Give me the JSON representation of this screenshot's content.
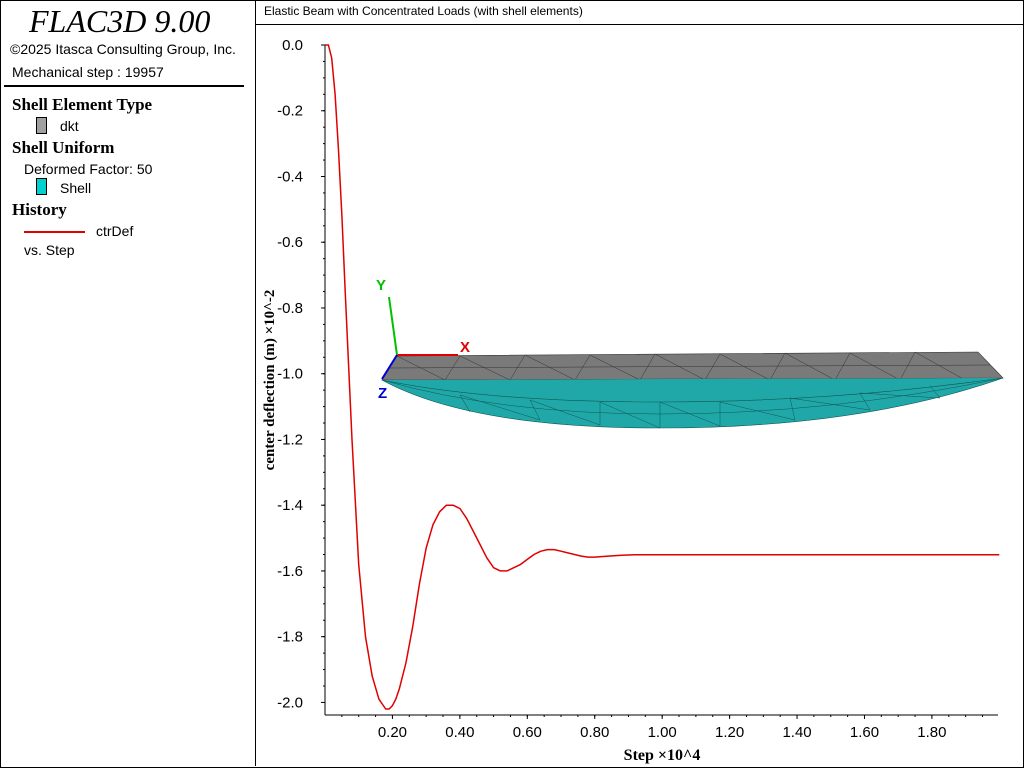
{
  "app": {
    "title": "FLAC3D 9.00",
    "copyright": "©2025 Itasca Consulting Group, Inc.",
    "mechanical_step": "Mechanical step : 19957"
  },
  "legend": {
    "shell_type_heading": "Shell Element Type",
    "shell_type_item": "dkt",
    "shell_type_color": "#a0a0a0",
    "shell_uniform_heading": "Shell Uniform",
    "deformed_factor": "Deformed Factor: 50",
    "shell_item": "Shell",
    "shell_color": "#00d0d0",
    "history_heading": "History",
    "history_item": "ctrDef",
    "history_color": "#e00000",
    "history_vs": "vs. Step"
  },
  "plot": {
    "title": "Elastic Beam with Concentrated Loads (with shell elements)"
  },
  "chart_data": {
    "type": "line",
    "xlabel": "Step ×10^4",
    "ylabel": "center deflection (m) ×10^-2",
    "xlim": [
      0,
      1.996
    ],
    "ylim": [
      -2.02,
      0.0
    ],
    "xticks": [
      "0.20",
      "0.40",
      "0.60",
      "0.80",
      "1.00",
      "1.20",
      "1.40",
      "1.60",
      "1.80"
    ],
    "yticks": [
      "0.0",
      "-0.2",
      "-0.4",
      "-0.6",
      "-0.8",
      "-1.0",
      "-1.2",
      "-1.4",
      "-1.6",
      "-1.8",
      "-2.0"
    ],
    "grid": false,
    "series": [
      {
        "name": "ctrDef",
        "color": "#e00000",
        "x": [
          0.0,
          0.01,
          0.02,
          0.03,
          0.04,
          0.05,
          0.06,
          0.08,
          0.1,
          0.12,
          0.14,
          0.16,
          0.18,
          0.19,
          0.2,
          0.21,
          0.22,
          0.24,
          0.26,
          0.28,
          0.3,
          0.32,
          0.34,
          0.36,
          0.38,
          0.4,
          0.42,
          0.44,
          0.46,
          0.48,
          0.5,
          0.52,
          0.54,
          0.56,
          0.58,
          0.6,
          0.62,
          0.64,
          0.66,
          0.68,
          0.7,
          0.72,
          0.74,
          0.76,
          0.78,
          0.8,
          0.84,
          0.88,
          0.92,
          0.96,
          1.0,
          1.04,
          1.08,
          1.12,
          1.16,
          1.2,
          1.3,
          1.4,
          1.5,
          1.6,
          1.7,
          1.8,
          1.9,
          2.0
        ],
        "y": [
          0.0,
          0.0,
          -0.04,
          -0.15,
          -0.32,
          -0.52,
          -0.75,
          -1.2,
          -1.58,
          -1.8,
          -1.92,
          -1.99,
          -2.02,
          -2.02,
          -2.01,
          -1.99,
          -1.96,
          -1.88,
          -1.77,
          -1.64,
          -1.53,
          -1.46,
          -1.42,
          -1.4,
          -1.4,
          -1.41,
          -1.44,
          -1.48,
          -1.52,
          -1.56,
          -1.59,
          -1.6,
          -1.6,
          -1.59,
          -1.58,
          -1.565,
          -1.55,
          -1.54,
          -1.535,
          -1.535,
          -1.54,
          -1.545,
          -1.55,
          -1.555,
          -1.558,
          -1.558,
          -1.555,
          -1.552,
          -1.551,
          -1.551,
          -1.551,
          -1.551,
          -1.551,
          -1.551,
          -1.551,
          -1.551,
          -1.551,
          -1.551,
          -1.551,
          -1.551,
          -1.551,
          -1.551,
          -1.551,
          -1.551
        ]
      }
    ]
  },
  "overlay": {
    "axis_x": "X",
    "axis_y": "Y",
    "axis_z": "Z",
    "axis_x_color": "#e00000",
    "axis_y_color": "#00c000",
    "axis_z_color": "#0000d0",
    "undeformed_color": "#7a7a7a",
    "deformed_color": "#20a8a8"
  }
}
